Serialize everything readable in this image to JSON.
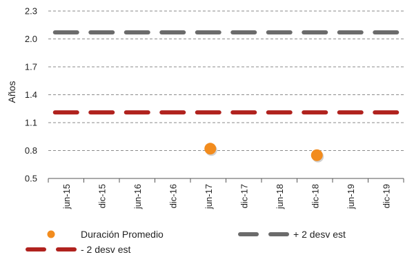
{
  "chart_data": {
    "type": "line",
    "ylabel": "Años",
    "xlabel": "",
    "ylim": [
      0.5,
      2.3
    ],
    "yticks": [
      "0.5",
      "0.8",
      "1.1",
      "1.4",
      "1.7",
      "2.0",
      "2.3"
    ],
    "categories": [
      "jun-15",
      "dic-15",
      "jun-16",
      "dic-16",
      "jun-17",
      "dic-17",
      "jun-18",
      "dic-18",
      "jun-19",
      "dic-19"
    ],
    "grid": "horizontal-dashed",
    "legend_position": "bottom",
    "series": [
      {
        "name": "Duración Promedio",
        "kind": "scatter",
        "color": "#F28C1E",
        "points": [
          {
            "x": "jun-17",
            "y": 0.82
          },
          {
            "x": "dic-18",
            "y": 0.75
          }
        ]
      },
      {
        "name": "+ 2 desv est",
        "kind": "dashed-line",
        "color": "#6B6B6B",
        "values": [
          2.07,
          2.07,
          2.07,
          2.07,
          2.07,
          2.07,
          2.07,
          2.07,
          2.07,
          2.07
        ]
      },
      {
        "name": "- 2 desv est",
        "kind": "dashed-line",
        "color": "#B0221E",
        "values": [
          1.21,
          1.21,
          1.21,
          1.21,
          1.21,
          1.21,
          1.21,
          1.21,
          1.21,
          1.21
        ]
      }
    ]
  }
}
